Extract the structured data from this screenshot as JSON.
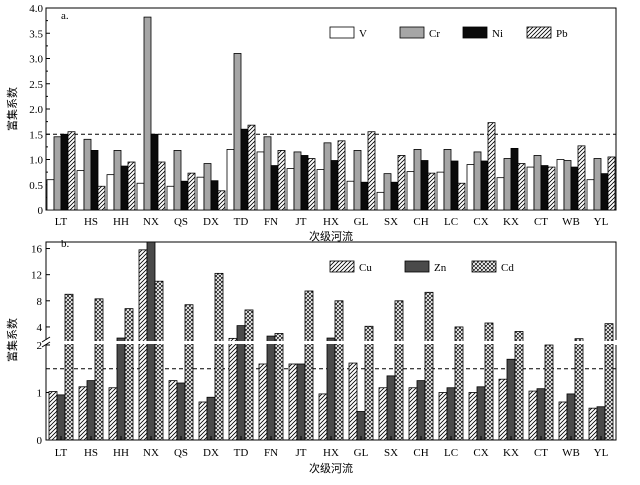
{
  "chart_data": [
    {
      "type": "bar",
      "panel_label": "a.",
      "ylabel": "富集系数",
      "xlabel": "次级河流",
      "categories": [
        "LT",
        "HS",
        "HH",
        "NX",
        "QS",
        "DX",
        "TD",
        "FN",
        "JT",
        "HX",
        "GL",
        "SX",
        "CH",
        "LC",
        "CX",
        "KX",
        "CT",
        "WB",
        "YL"
      ],
      "ylim": [
        0,
        4.0
      ],
      "yticks": [
        "0",
        "0.5",
        "1.0",
        "1.5",
        "2.0",
        "2.5",
        "3.0",
        "3.5",
        "4.0"
      ],
      "reference_line": 1.5,
      "legend_position": "top-right",
      "series": [
        {
          "name": "V",
          "pattern": "white",
          "values": [
            0.6,
            0.78,
            0.7,
            0.53,
            0.47,
            0.65,
            1.2,
            1.15,
            0.82,
            0.8,
            0.57,
            0.35,
            0.76,
            0.75,
            0.9,
            0.64,
            0.85,
            1.0,
            0.6
          ]
        },
        {
          "name": "Cr",
          "pattern": "gray",
          "values": [
            1.45,
            1.4,
            1.18,
            3.82,
            1.18,
            0.92,
            3.1,
            1.45,
            1.15,
            1.33,
            1.18,
            0.72,
            1.2,
            1.2,
            1.15,
            1.02,
            1.08,
            0.98,
            1.02
          ]
        },
        {
          "name": "Ni",
          "pattern": "black",
          "values": [
            1.5,
            1.18,
            0.87,
            1.5,
            0.57,
            0.58,
            1.6,
            0.88,
            1.08,
            0.98,
            0.55,
            0.55,
            0.98,
            0.97,
            0.97,
            1.22,
            0.88,
            0.85,
            0.72
          ]
        },
        {
          "name": "Pb",
          "pattern": "hatched",
          "values": [
            1.55,
            0.47,
            0.95,
            0.95,
            0.73,
            0.38,
            1.68,
            1.18,
            1.02,
            1.37,
            1.55,
            1.08,
            0.73,
            0.53,
            1.73,
            0.92,
            0.85,
            1.27,
            1.05
          ]
        }
      ]
    },
    {
      "type": "bar",
      "panel_label": "b.",
      "ylabel": "富集系数",
      "xlabel": "次级河流",
      "categories": [
        "LT",
        "HS",
        "HH",
        "NX",
        "QS",
        "DX",
        "TD",
        "FN",
        "JT",
        "HX",
        "GL",
        "SX",
        "CH",
        "LC",
        "CX",
        "KX",
        "CT",
        "WB",
        "YL"
      ],
      "broken_axis": {
        "lower_range": [
          0,
          2
        ],
        "upper_range": [
          2,
          17
        ]
      },
      "yticks": [
        "0",
        "1",
        "2",
        "4",
        "8",
        "12",
        "16"
      ],
      "reference_line": 1.5,
      "legend_position": "top-right",
      "series": [
        {
          "name": "Cu",
          "pattern": "hatched",
          "values": [
            1.02,
            1.12,
            1.1,
            15.8,
            1.25,
            0.8,
            2.25,
            1.6,
            1.6,
            0.97,
            1.62,
            1.1,
            1.1,
            1.0,
            1.0,
            1.28,
            1.03,
            0.8,
            0.67
          ]
        },
        {
          "name": "Zn",
          "pattern": "dark",
          "values": [
            0.95,
            1.25,
            2.3,
            17.0,
            1.2,
            0.9,
            4.2,
            2.6,
            1.6,
            2.3,
            0.6,
            1.35,
            1.25,
            1.1,
            1.12,
            1.7,
            1.08,
            0.97,
            0.7
          ]
        },
        {
          "name": "Cd",
          "pattern": "crosshatch",
          "values": [
            9.0,
            8.3,
            6.8,
            11.0,
            7.4,
            12.2,
            6.6,
            3.0,
            9.5,
            8.0,
            4.1,
            8.0,
            9.3,
            4.0,
            4.6,
            3.3,
            2.0,
            2.2,
            4.5
          ]
        }
      ]
    }
  ]
}
